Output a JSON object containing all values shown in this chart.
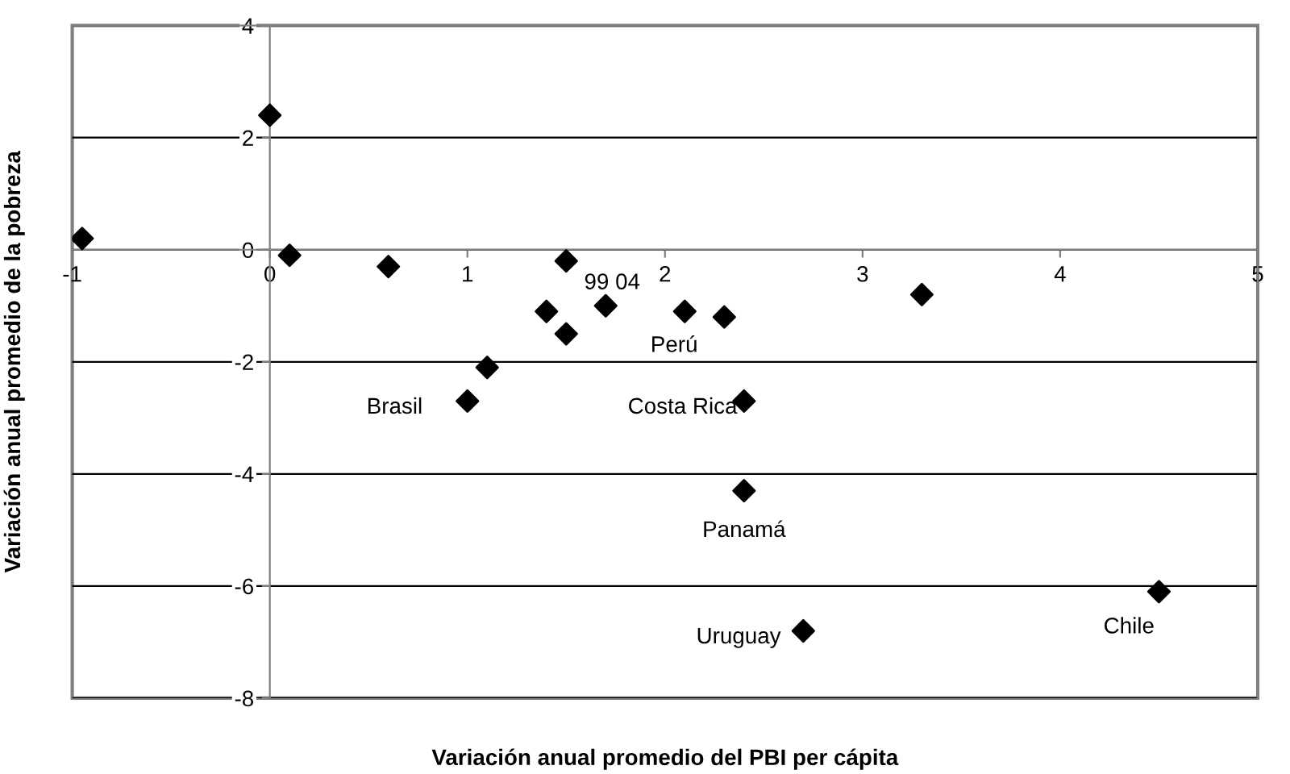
{
  "chart_data": {
    "type": "scatter",
    "xlabel": "Variación anual promedio del PBI per cápita",
    "ylabel": "Variación anual promedio de la pobreza",
    "x": [
      -0.95,
      0,
      0.1,
      0.6,
      1.5,
      1.4,
      1.5,
      1.7,
      2.1,
      2.3,
      3.3,
      1.1,
      1.0,
      2.4,
      2.4,
      2.7,
      4.5
    ],
    "series": [
      {
        "color": "#000000",
        "values": [
          0.2,
          2.4,
          -0.1,
          -0.3,
          -0.2,
          -1.1,
          -1.5,
          -1.0,
          -1.1,
          -1.2,
          -0.8,
          -2.1,
          -2.7,
          -2.7,
          -4.3,
          -6.8,
          -6.1
        ]
      }
    ],
    "marker": "diamond",
    "grid": "y",
    "xlim": [
      -1,
      5
    ],
    "xticks": [
      -1,
      0,
      1,
      2,
      3,
      4,
      5
    ],
    "ylim": [
      -8,
      4
    ],
    "yticks": [
      -8,
      -6,
      -4,
      -2,
      0,
      2,
      4
    ],
    "annotations": [
      {
        "text": "99 04",
        "x": 1.5,
        "y": -0.2
      },
      {
        "text": "Perú",
        "x": 1.7,
        "y": -1.0
      },
      {
        "text": "Brasil",
        "x": 1.0,
        "y": -2.7
      },
      {
        "text": "Costa Rica",
        "x": 2.4,
        "y": -2.7
      },
      {
        "text": "Panamá",
        "x": 2.4,
        "y": -4.3
      },
      {
        "text": "Uruguay",
        "x": 2.7,
        "y": -6.8
      },
      {
        "text": "Chile",
        "x": 4.5,
        "y": -6.1
      }
    ]
  }
}
